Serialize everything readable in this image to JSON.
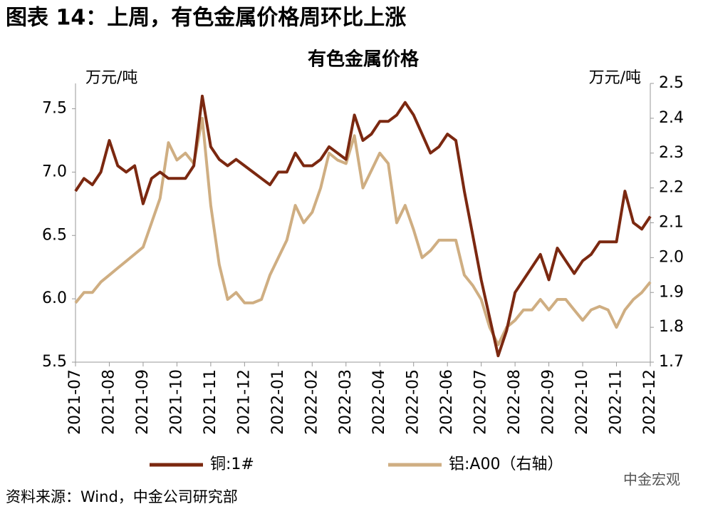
{
  "heading": "图表 14：上周，有色金属价格周环比上涨",
  "source": "资料来源：Wind，中金公司研究部",
  "watermark": "中金宏观",
  "chart_data": {
    "type": "line",
    "title": "有色金属价格",
    "ylabel": "万元/吨",
    "y2label": "万元/吨",
    "categories": [
      "2021-07",
      null,
      null,
      null,
      "2021-08",
      null,
      null,
      null,
      "2021-09",
      null,
      null,
      null,
      "2021-10",
      null,
      null,
      null,
      "2021-11",
      null,
      null,
      null,
      "2021-12",
      null,
      null,
      null,
      "2022-01",
      null,
      null,
      null,
      "2022-02",
      null,
      null,
      null,
      "2022-03",
      null,
      null,
      null,
      "2022-04",
      null,
      null,
      null,
      "2022-05",
      null,
      null,
      null,
      "2022-06",
      null,
      null,
      null,
      "2022-07",
      null,
      null,
      null,
      "2022-08",
      null,
      null,
      null,
      "2022-09",
      null,
      null,
      null,
      "2022-10",
      null,
      null,
      null,
      "2022-11",
      null,
      null,
      null,
      "2022-12"
    ],
    "series": [
      {
        "name": "铜:1#",
        "color": "#7b2810",
        "values": [
          6.85,
          6.95,
          6.9,
          7.0,
          7.25,
          7.05,
          7.0,
          7.05,
          6.75,
          6.95,
          7.0,
          6.95,
          6.95,
          6.95,
          7.05,
          7.6,
          7.2,
          7.1,
          7.05,
          7.1,
          7.05,
          7.0,
          6.95,
          6.9,
          7.0,
          7.0,
          7.15,
          7.05,
          7.05,
          7.1,
          7.2,
          7.15,
          7.1,
          7.45,
          7.25,
          7.3,
          7.4,
          7.4,
          7.45,
          7.55,
          7.45,
          7.3,
          7.15,
          7.2,
          7.3,
          7.25,
          6.85,
          6.5,
          6.15,
          5.85,
          5.55,
          5.75,
          6.05,
          6.15,
          6.25,
          6.35,
          6.15,
          6.4,
          6.3,
          6.2,
          6.3,
          6.35,
          6.45,
          6.45,
          6.45,
          6.85,
          6.6,
          6.55,
          6.65
        ]
      },
      {
        "name": "铝:A00（右轴）",
        "color": "#cfae82",
        "axis": "y2",
        "values": [
          1.87,
          1.9,
          1.9,
          1.93,
          1.95,
          1.97,
          1.99,
          2.01,
          2.03,
          2.1,
          2.17,
          2.33,
          2.28,
          2.3,
          2.27,
          2.4,
          2.15,
          1.98,
          1.88,
          1.9,
          1.87,
          1.87,
          1.88,
          1.95,
          2.0,
          2.05,
          2.15,
          2.1,
          2.13,
          2.2,
          2.3,
          2.28,
          2.27,
          2.35,
          2.2,
          2.25,
          2.3,
          2.27,
          2.1,
          2.15,
          2.08,
          2.0,
          2.02,
          2.05,
          2.05,
          2.05,
          1.95,
          1.92,
          1.88,
          1.8,
          1.75,
          1.8,
          1.82,
          1.85,
          1.85,
          1.88,
          1.85,
          1.88,
          1.88,
          1.85,
          1.82,
          1.85,
          1.86,
          1.85,
          1.8,
          1.85,
          1.88,
          1.9,
          1.93
        ]
      }
    ],
    "ylim": [
      5.5,
      7.7
    ],
    "yticks": [
      5.5,
      {
        "value": 6,
        "label": "6.0"
      },
      6.5,
      {
        "value": 7,
        "label": "7.0"
      },
      7.5
    ],
    "y2lim": [
      1.7,
      2.5
    ],
    "y2ticks": [
      1.7,
      1.8,
      1.9,
      {
        "value": 2,
        "label": "2.0"
      },
      2.1,
      2.2,
      2.3,
      2.4,
      2.5
    ]
  }
}
